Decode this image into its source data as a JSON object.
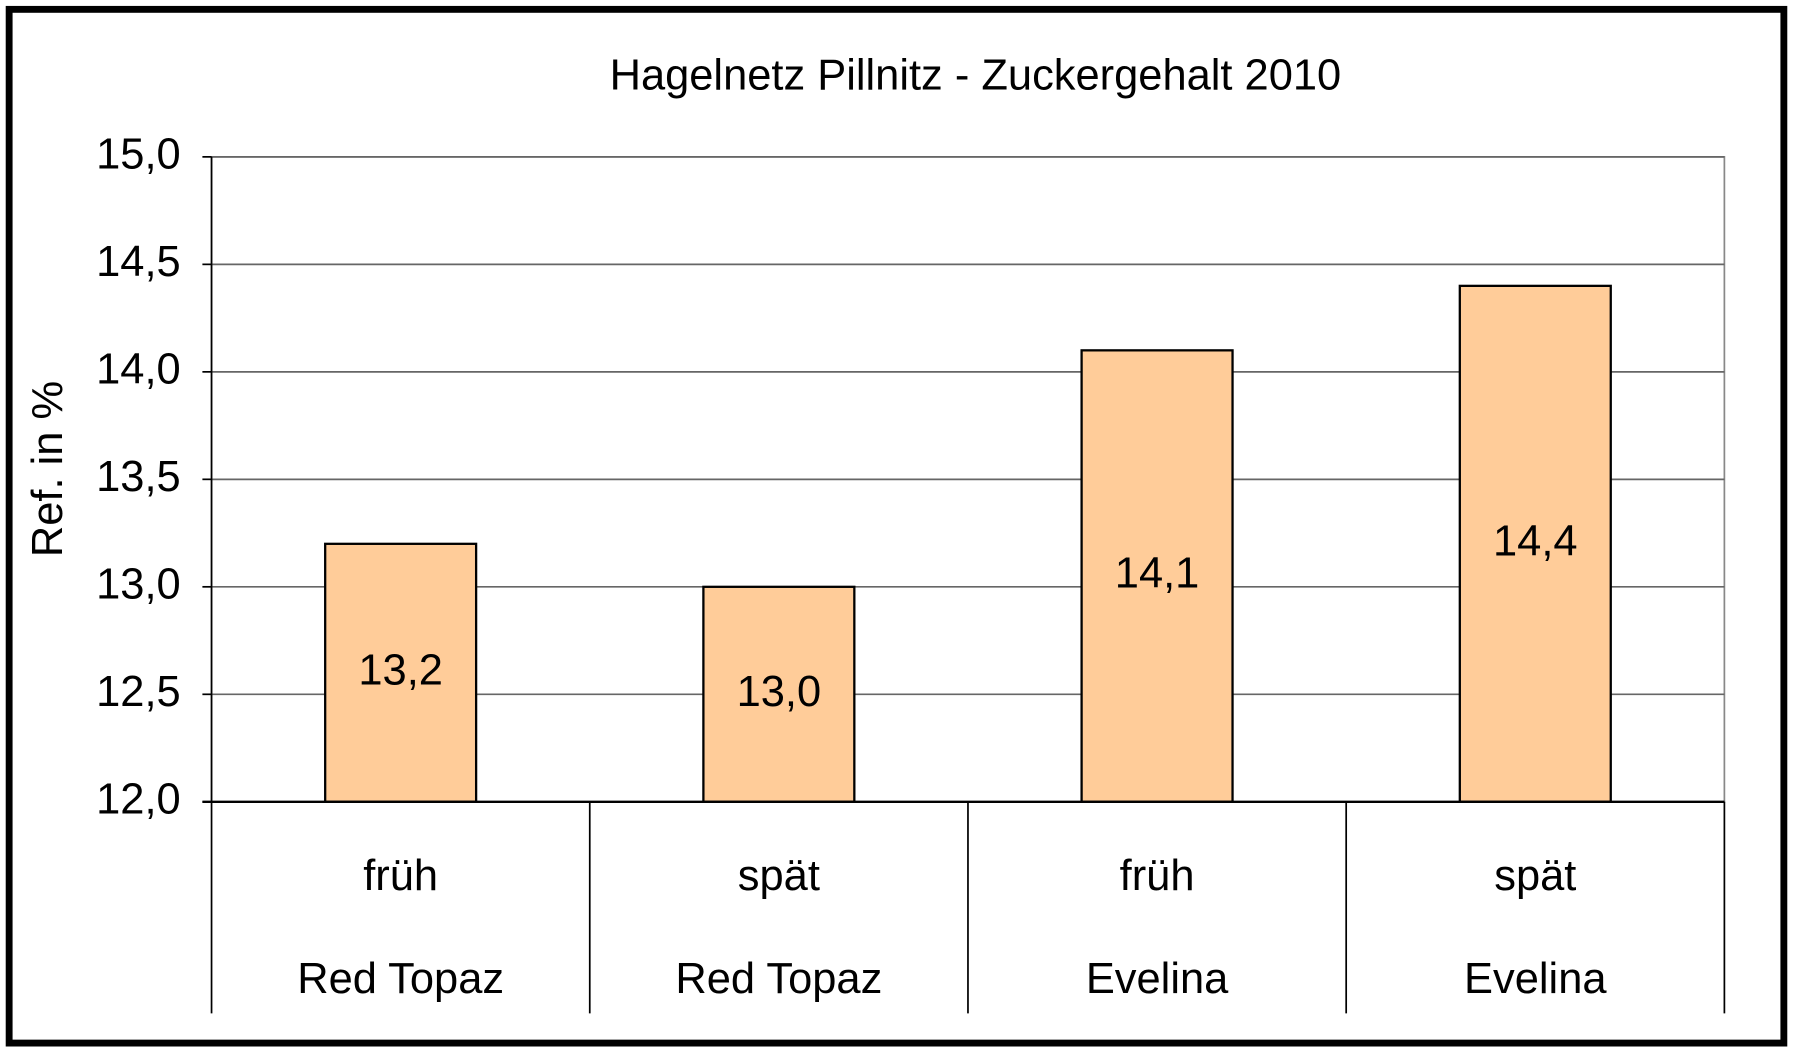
{
  "chart_data": {
    "type": "bar",
    "title": "Hagelnetz Pillnitz - Zuckergehalt 2010",
    "y_label": "Ref. in %",
    "categories": [
      "früh",
      "spät",
      "früh",
      "spät"
    ],
    "groups": [
      "Red Topaz",
      "Red Topaz",
      "Evelina",
      "Evelina"
    ],
    "values": [
      13.2,
      13.0,
      14.1,
      14.4
    ],
    "value_labels": [
      "13,2",
      "13,0",
      "14,1",
      "14,4"
    ],
    "color": "#ffcc99",
    "ylim": [
      12,
      15
    ],
    "yticks": [
      {
        "value": 12,
        "label": "12,0"
      },
      {
        "value": 12.5,
        "label": "12,5"
      },
      {
        "value": 13,
        "label": "13,0"
      },
      {
        "value": 13.5,
        "label": "13,5"
      },
      {
        "value": 14,
        "label": "14,0"
      },
      {
        "value": 14.5,
        "label": "14,5"
      },
      {
        "value": 15,
        "label": "15,0"
      }
    ],
    "grid": true
  }
}
